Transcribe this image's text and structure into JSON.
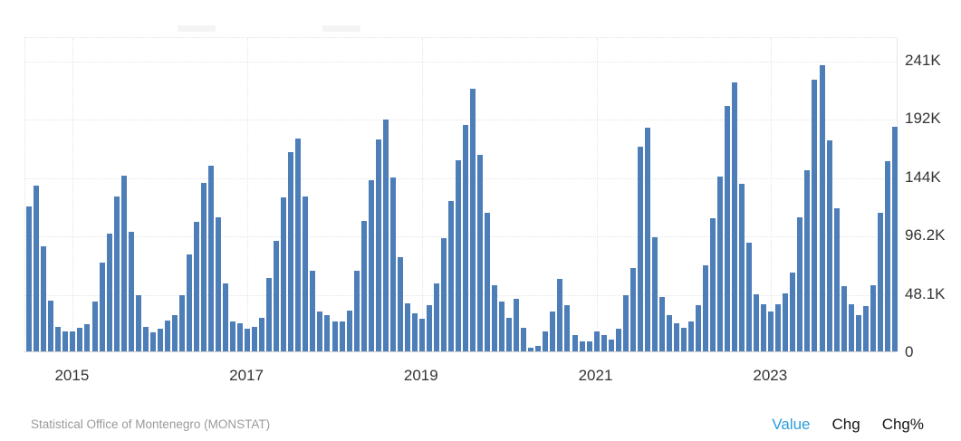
{
  "chart_data": {
    "type": "bar",
    "title": "",
    "xlabel": "",
    "ylabel": "",
    "unit": "persons (K = thousands)",
    "frequency": "monthly",
    "x_start": "2014-07",
    "x_end": "2024-06",
    "values_thousands": [
      119.5,
      136.4,
      86.4,
      42.0,
      20.5,
      16.8,
      16.8,
      19.3,
      22.5,
      40.8,
      73.4,
      97.4,
      127.6,
      144.7,
      98.3,
      46.1,
      20.5,
      15.6,
      18.8,
      25.4,
      30.0,
      46.1,
      79.8,
      107.1,
      138.8,
      153.0,
      110.8,
      55.9,
      24.4,
      22.9,
      18.5,
      20.5,
      28.0,
      60.2,
      90.8,
      126.6,
      164.0,
      175.5,
      127.4,
      66.8,
      32.7,
      29.8,
      24.9,
      24.9,
      33.9,
      66.4,
      107.8,
      141.3,
      175.0,
      191.5,
      143.7,
      77.8,
      39.5,
      31.7,
      26.6,
      37.8,
      55.9,
      93.7,
      123.7,
      157.2,
      186.4,
      216.9,
      162.3,
      114.4,
      54.9,
      41.2,
      27.3,
      43.2,
      19.3,
      3.1,
      4.2,
      16.8,
      32.7,
      59.8,
      38.3,
      13.2,
      8.6,
      8.6,
      16.3,
      13.4,
      9.7,
      18.8,
      46.6,
      68.8,
      168.8,
      184.7,
      94.4,
      44.9,
      29.8,
      23.2,
      19.3,
      24.9,
      37.8,
      71.2,
      109.6,
      144.4,
      202.2,
      222.0,
      138.3,
      89.5,
      46.8,
      38.8,
      33.0,
      38.8,
      48.0,
      65.1,
      110.8,
      149.3,
      223.7,
      236.0,
      173.7,
      118.3,
      53.7,
      38.8,
      29.8,
      37.6,
      54.2,
      114.4,
      156.6,
      185.4
    ],
    "ylim_thousands": [
      0,
      259.8
    ],
    "grid": "dotted",
    "legend": "none",
    "bar_color": "#4d7eb8",
    "y_ticks": [
      {
        "label": "0",
        "k": 0
      },
      {
        "label": "48.1K",
        "k": 48.1
      },
      {
        "label": "96.2K",
        "k": 96.2
      },
      {
        "label": "144K",
        "k": 144.3
      },
      {
        "label": "192K",
        "k": 192.4
      },
      {
        "label": "241K",
        "k": 240.5
      }
    ],
    "x_ticks": [
      {
        "label": "2015",
        "month_index": 6
      },
      {
        "label": "2017",
        "month_index": 30
      },
      {
        "label": "2019",
        "month_index": 54
      },
      {
        "label": "2021",
        "month_index": 78
      },
      {
        "label": "2023",
        "month_index": 102
      }
    ]
  },
  "footer": {
    "source": "Statistical Office of Montenegro (MONSTAT)",
    "links": [
      {
        "label": "Value",
        "active": true
      },
      {
        "label": "Chg",
        "active": false
      },
      {
        "label": "Chg%",
        "active": false
      }
    ]
  },
  "colors": {
    "bar": "#4d7eb8",
    "axis_text": "#333333",
    "source_text": "#9a9a9a",
    "active_link": "#2d9cdb",
    "gridline": "#e4e4e4"
  }
}
